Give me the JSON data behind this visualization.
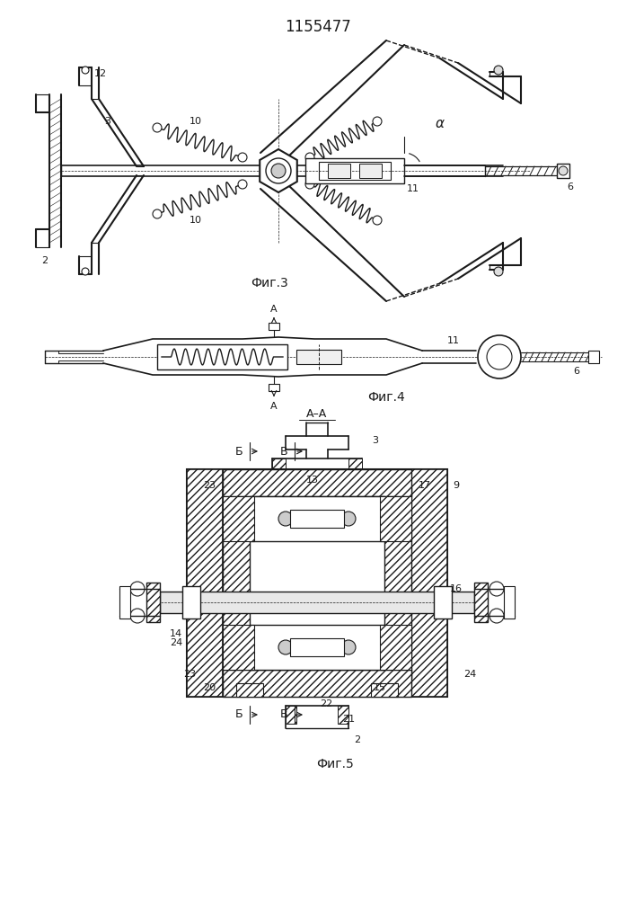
{
  "title": "1155477",
  "bg_color": "#ffffff",
  "line_color": "#1a1a1a",
  "fig3_label": "Фиг.3",
  "fig4_label": "Фиг.4",
  "fig5_label": "Фиг.5",
  "fig_width": 7.07,
  "fig_height": 10.0
}
